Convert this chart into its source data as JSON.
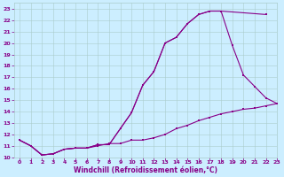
{
  "xlabel": "Windchill (Refroidissement éolien,°C)",
  "xlim": [
    -0.5,
    23
  ],
  "ylim": [
    10,
    23.5
  ],
  "xticks": [
    0,
    1,
    2,
    3,
    4,
    5,
    6,
    7,
    8,
    9,
    10,
    11,
    12,
    13,
    14,
    15,
    16,
    17,
    18,
    19,
    20,
    21,
    22,
    23
  ],
  "yticks": [
    10,
    11,
    12,
    13,
    14,
    15,
    16,
    17,
    18,
    19,
    20,
    21,
    22,
    23
  ],
  "bg_color": "#cceeff",
  "grid_color": "#aacccc",
  "line_color": "#880088",
  "line1_x": [
    0,
    1,
    2,
    3,
    4,
    5,
    6,
    7,
    8,
    9,
    10,
    11,
    12,
    13,
    14,
    15,
    16,
    17,
    18,
    22
  ],
  "line1_y": [
    11.5,
    11.0,
    10.2,
    10.3,
    10.7,
    10.8,
    10.8,
    11.1,
    11.1,
    12.5,
    13.9,
    16.3,
    17.5,
    20.0,
    20.5,
    21.7,
    22.5,
    22.8,
    22.8,
    22.5
  ],
  "line2_x": [
    0,
    1,
    2,
    3,
    4,
    5,
    6,
    7,
    8,
    9,
    10,
    11,
    12,
    13,
    14,
    15,
    16,
    17,
    18,
    19,
    20,
    21,
    22,
    23
  ],
  "line2_y": [
    11.5,
    11.0,
    10.2,
    10.3,
    10.7,
    10.8,
    10.8,
    11.1,
    11.1,
    12.5,
    13.9,
    16.3,
    17.5,
    20.0,
    20.5,
    21.7,
    22.5,
    22.8,
    22.8,
    19.8,
    17.2,
    16.2,
    15.2,
    14.7
  ],
  "line3_x": [
    0,
    1,
    2,
    3,
    4,
    5,
    6,
    7,
    8,
    9,
    10,
    11,
    12,
    13,
    14,
    15,
    16,
    17,
    18,
    19,
    20,
    21,
    22,
    23
  ],
  "line3_y": [
    11.5,
    11.0,
    10.2,
    10.3,
    10.7,
    10.8,
    10.8,
    11.0,
    11.2,
    11.2,
    11.5,
    11.5,
    11.7,
    12.0,
    12.5,
    12.8,
    13.2,
    13.5,
    13.8,
    14.0,
    14.2,
    14.3,
    14.5,
    14.7
  ]
}
